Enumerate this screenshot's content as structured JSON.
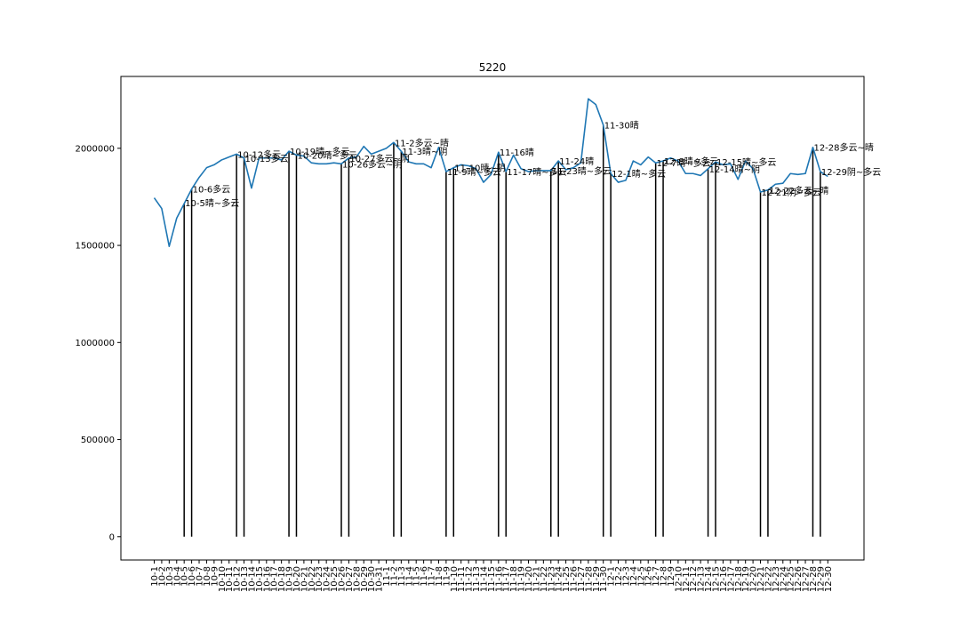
{
  "chart_data": {
    "type": "line",
    "title": "5220",
    "xlabel": "",
    "ylabel": "",
    "ylim": [
      -120000,
      2370000
    ],
    "yticks": [
      0,
      500000,
      1000000,
      1500000,
      2000000
    ],
    "ytick_labels": [
      "0",
      "500000",
      "1000000",
      "1500000",
      "2000000"
    ],
    "grid": false,
    "categories": [
      "10-1",
      "10-2",
      "10-3",
      "10-4",
      "10-5",
      "10-6",
      "10-7",
      "10-8",
      "10-9",
      "10-10",
      "10-11",
      "10-12",
      "10-13",
      "10-14",
      "10-15",
      "10-16",
      "10-17",
      "10-18",
      "10-19",
      "10-20",
      "10-21",
      "10-22",
      "10-23",
      "10-24",
      "10-25",
      "10-26",
      "10-27",
      "10-28",
      "10-29",
      "10-30",
      "10-31",
      "11-1",
      "11-2",
      "11-3",
      "11-4",
      "11-5",
      "11-6",
      "11-7",
      "11-8",
      "11-9",
      "11-10",
      "11-11",
      "11-12",
      "11-13",
      "11-14",
      "11-15",
      "11-16",
      "11-17",
      "11-18",
      "11-19",
      "11-20",
      "11-21",
      "11-22",
      "11-23",
      "11-24",
      "11-25",
      "11-26",
      "11-27",
      "11-28",
      "11-29",
      "11-30",
      "12-1",
      "12-2",
      "12-3",
      "12-4",
      "12-5",
      "12-6",
      "12-7",
      "12-8",
      "12-9",
      "12-10",
      "12-11",
      "12-12",
      "12-13",
      "12-14",
      "12-15",
      "12-16",
      "12-17",
      "12-18",
      "12-19",
      "12-20",
      "12-21",
      "12-22",
      "12-23",
      "12-24",
      "12-25",
      "12-26",
      "12-27",
      "12-28",
      "12-29",
      "12-30"
    ],
    "xtick_labels": [
      "10-1",
      "10-2",
      "10-3",
      "10-4",
      "10-5",
      "10-6",
      "10-7",
      "10-8",
      "10-9",
      "10-10",
      "10-11",
      "10-12",
      "10-13",
      "10-14",
      "10-15",
      "10-16",
      "10-17",
      "10-18",
      "10-19",
      "10-20",
      "10-21",
      "10-22",
      "10-23",
      "10-24",
      "10-25",
      "10-26",
      "10-27",
      "10-28",
      "10-29",
      "10-30",
      "10-31",
      "11-1",
      "11-2",
      "11-3",
      "11-4",
      "11-5",
      "11-6",
      "11-7",
      "11-8",
      "11-9",
      "11-10",
      "11-11",
      "11-12",
      "11-13",
      "11-14",
      "11-15",
      "11-16",
      "11-17",
      "11-18",
      "11-19",
      "11-20",
      "11-21",
      "11-22",
      "11-23",
      "11-24",
      "11-25",
      "11-26",
      "11-27",
      "11-28",
      "11-29",
      "11-30",
      "12-1",
      "12-2",
      "12-3",
      "12-4",
      "12-5",
      "12-6",
      "12-7",
      "12-8",
      "12-9",
      "12-10",
      "12-11",
      "12-12",
      "12-13",
      "12-14",
      "12-15",
      "12-16",
      "12-17",
      "12-18",
      "12-19",
      "12-20",
      "12-21",
      "12-22",
      "12-23",
      "12-24",
      "12-25",
      "12-26",
      "12-27",
      "12-28",
      "12-29",
      "12-30"
    ],
    "series": [
      {
        "values": [
          1745000,
          1690000,
          1495000,
          1640000,
          1715000,
          1790000,
          1850000,
          1900000,
          1915000,
          1940000,
          1955000,
          1970000,
          1950000,
          1795000,
          1950000,
          1950000,
          1950000,
          1940000,
          1985000,
          1965000,
          1960000,
          1925000,
          1920000,
          1920000,
          1925000,
          1920000,
          1950000,
          1955000,
          2010000,
          1970000,
          1985000,
          2000000,
          2030000,
          1985000,
          1930000,
          1920000,
          1920000,
          1900000,
          2005000,
          1880000,
          1900000,
          1915000,
          1910000,
          1895000,
          1825000,
          1865000,
          1980000,
          1880000,
          1965000,
          1895000,
          1880000,
          1885000,
          1885000,
          1885000,
          1935000,
          1890000,
          1900000,
          1925000,
          2255000,
          2225000,
          2120000,
          1870000,
          1825000,
          1835000,
          1935000,
          1915000,
          1955000,
          1925000,
          1935000,
          1950000,
          1935000,
          1870000,
          1870000,
          1860000,
          1895000,
          1930000,
          1915000,
          1920000,
          1840000,
          1935000,
          1895000,
          1775000,
          1785000,
          1815000,
          1820000,
          1870000,
          1865000,
          1870000,
          2005000,
          1880000,
          1855000
        ],
        "color": "#1f77b4"
      }
    ],
    "vlines": {
      "color": "#000000",
      "items": [
        {
          "x": "10-5",
          "label": "10-5晴~多云",
          "label_y": 1720000
        },
        {
          "x": "10-6",
          "label": "10-6多云",
          "label_y": 1790000
        },
        {
          "x": "10-12",
          "label": "10-12多云",
          "label_y": 1970000
        },
        {
          "x": "10-13",
          "label": "10-13多云",
          "label_y": 1950000
        },
        {
          "x": "10-19",
          "label": "10-19晴~多云",
          "label_y": 1985000
        },
        {
          "x": "10-20",
          "label": "10-20晴~多云",
          "label_y": 1965000
        },
        {
          "x": "10-26",
          "label": "10-26多云~阴",
          "label_y": 1920000
        },
        {
          "x": "10-27",
          "label": "10-27多云~阴",
          "label_y": 1950000
        },
        {
          "x": "11-2",
          "label": "11-2多云~晴",
          "label_y": 2030000
        },
        {
          "x": "11-3",
          "label": "11-3晴~阴",
          "label_y": 1985000
        },
        {
          "x": "11-9",
          "label": "11-9晴~多云",
          "label_y": 1880000
        },
        {
          "x": "11-10",
          "label": "11-10晴~阴",
          "label_y": 1900000
        },
        {
          "x": "11-16",
          "label": "11-16晴",
          "label_y": 1980000
        },
        {
          "x": "11-17",
          "label": "11-17晴~多云",
          "label_y": 1880000
        },
        {
          "x": "11-23",
          "label": "11-23晴~多云",
          "label_y": 1885000
        },
        {
          "x": "11-24",
          "label": "11-24晴",
          "label_y": 1935000
        },
        {
          "x": "11-30",
          "label": "11-30晴",
          "label_y": 2120000
        },
        {
          "x": "12-1",
          "label": "12-1晴~多云",
          "label_y": 1870000
        },
        {
          "x": "12-7",
          "label": "12-7晴~多云",
          "label_y": 1925000
        },
        {
          "x": "12-8",
          "label": "12-8晴~多云",
          "label_y": 1935000
        },
        {
          "x": "12-14",
          "label": "12-14晴~阴",
          "label_y": 1895000
        },
        {
          "x": "12-15",
          "label": "12-15晴~多云",
          "label_y": 1930000
        },
        {
          "x": "12-21",
          "label": "12-21阴~多云",
          "label_y": 1775000
        },
        {
          "x": "12-22",
          "label": "12-22多云~晴",
          "label_y": 1785000
        },
        {
          "x": "12-28",
          "label": "12-28多云~晴",
          "label_y": 2005000
        },
        {
          "x": "12-29",
          "label": "12-29阴~多云",
          "label_y": 1880000
        }
      ]
    }
  }
}
